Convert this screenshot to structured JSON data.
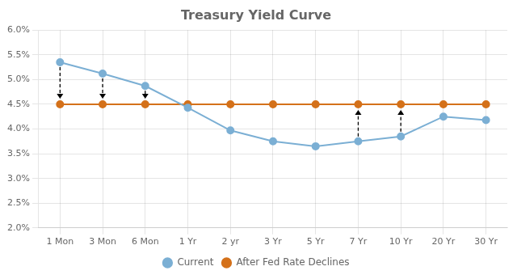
{
  "chart_data": {
    "type": "line",
    "title": "Treasury Yield Curve",
    "categories": [
      "1 Mon",
      "3 Mon",
      "6 Mon",
      "1 Yr",
      "2 yr",
      "3 Yr",
      "5 Yr",
      "7 Yr",
      "10 Yr",
      "20 Yr",
      "30 Yr"
    ],
    "series": [
      {
        "name": "Current",
        "color": "#7bafd4",
        "marker": "circle",
        "values": [
          5.35,
          5.12,
          4.87,
          4.43,
          3.97,
          3.75,
          3.65,
          3.75,
          3.85,
          4.25,
          4.18
        ]
      },
      {
        "name": "After Fed Rate Declines",
        "color": "#d4711a",
        "marker": "circle",
        "values": [
          4.5,
          4.5,
          4.5,
          4.5,
          4.5,
          4.5,
          4.5,
          4.5,
          4.5,
          4.5,
          4.5
        ]
      }
    ],
    "arrows": [
      "1 Mon",
      "3 Mon",
      "6 Mon",
      "7 Yr",
      "10 Yr"
    ],
    "ylim": [
      2.0,
      6.0
    ],
    "yticks": [
      {
        "value": 2.0,
        "label": "2.0%"
      },
      {
        "value": 2.5,
        "label": "2.5%"
      },
      {
        "value": 3.0,
        "label": "3.0%"
      },
      {
        "value": 3.5,
        "label": "3.5%"
      },
      {
        "value": 4.0,
        "label": "4.0%"
      },
      {
        "value": 4.5,
        "label": "4.5%"
      },
      {
        "value": 5.0,
        "label": "5.0%"
      },
      {
        "value": 5.5,
        "label": "5.5%"
      },
      {
        "value": 6.0,
        "label": "6.0%"
      }
    ],
    "grid": true,
    "legend": "bottom"
  }
}
